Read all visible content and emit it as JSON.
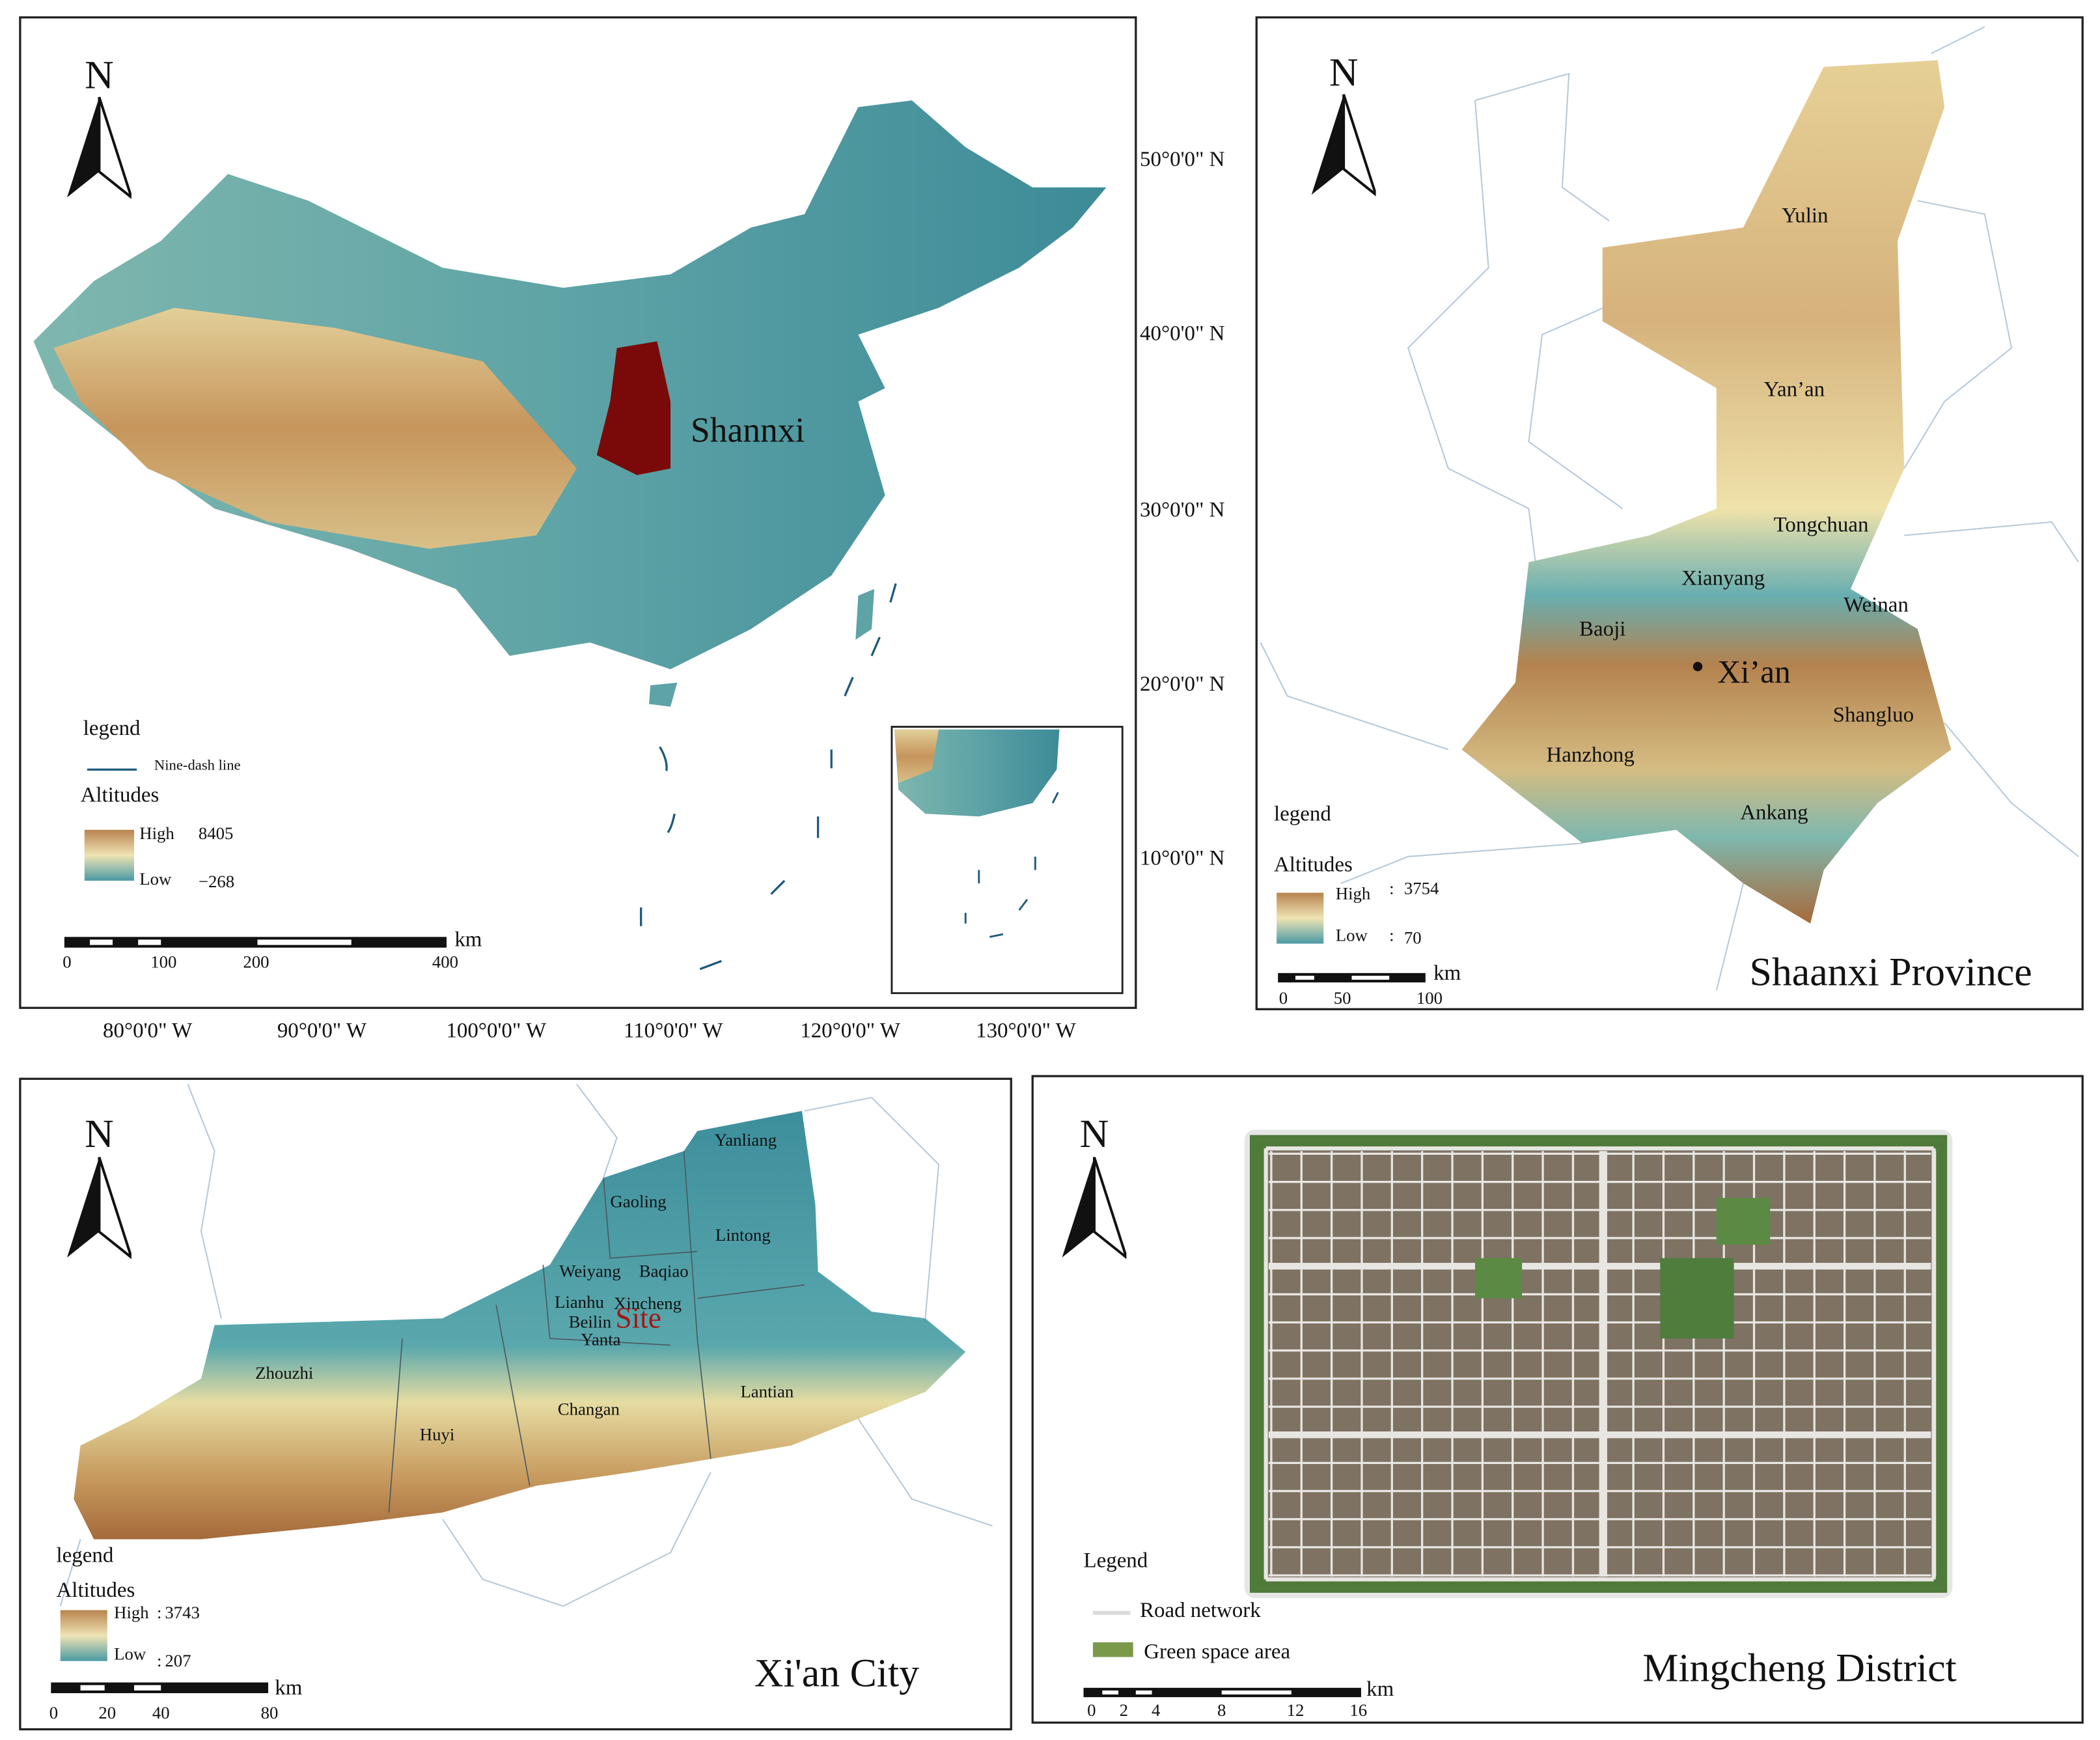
{
  "china_map": {
    "north": "N",
    "province_label": "Shannxi",
    "lat_labels": [
      "50°0'0\" N",
      "40°0'0\" N",
      "30°0'0\" N",
      "20°0'0\" N",
      "10°0'0\" N"
    ],
    "lon_labels": [
      "80°0'0\" W",
      "90°0'0\" W",
      "100°0'0\" W",
      "110°0'0\" W",
      "120°0'0\" W",
      "130°0'0\" W"
    ],
    "legend": {
      "title": "legend",
      "line": "Nine-dash line",
      "ramp_title": "Altitudes",
      "high": "High",
      "high_value": 8405,
      "low": "Low",
      "low_value": "−268"
    },
    "scale": {
      "unit": "km",
      "ticks": [
        0,
        100,
        200,
        400
      ]
    }
  },
  "shaanxi_map": {
    "north": "N",
    "title": "Shaanxi Province",
    "cities": [
      "Yulin",
      "Yan’an",
      "Tongchuan",
      "Xianyang",
      "Weinan",
      "Baoji",
      "Xi’an",
      "Shangluo",
      "Hanzhong",
      "Ankang"
    ],
    "legend": {
      "title": "legend",
      "ramp_title": "Altitudes",
      "high": "High",
      "high_value": 3754,
      "low": "Low",
      "low_value": 70,
      "separator": ":"
    },
    "scale": {
      "unit": "km",
      "ticks": [
        0,
        50,
        100
      ]
    }
  },
  "xian_map": {
    "north": "N",
    "title": "Xi'an City",
    "site": "Site",
    "districts": [
      "Yanliang",
      "Gaoling",
      "Lintong",
      "Weiyang",
      "Baqiao",
      "Lianhu",
      "Xincheng",
      "Beilin",
      "Yanta",
      "Zhouzhi",
      "Lantian",
      "Changan",
      "Huyi"
    ],
    "legend": {
      "title": "legend",
      "ramp_title": "Altitudes",
      "high": "High",
      "high_value": 3743,
      "low": "Low",
      "low_value": 207,
      "separator": ":"
    },
    "scale": {
      "unit": "km",
      "ticks": [
        0,
        20,
        40,
        80
      ]
    }
  },
  "mingcheng_map": {
    "north": "N",
    "title": "Mingcheng District",
    "legend": {
      "title": "Legend",
      "road": "Road network",
      "green": "Green space area"
    },
    "scale": {
      "unit": "km",
      "ticks": [
        0,
        2,
        4,
        8,
        12,
        16
      ]
    }
  }
}
